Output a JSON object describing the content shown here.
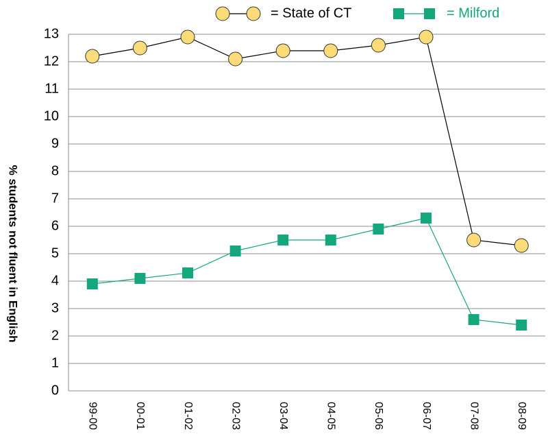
{
  "chart_data": {
    "type": "line",
    "y_label": "% students not fluent in English",
    "categories": [
      "99-00",
      "00-01",
      "01-02",
      "02-03",
      "03-04",
      "04-05",
      "05-06",
      "06-07",
      "07-08",
      "08-09"
    ],
    "series": [
      {
        "name": "= State of CT",
        "color": "#fbdc78",
        "line_color": "#000000",
        "marker": "circle",
        "values": [
          12.2,
          12.5,
          12.9,
          12.1,
          12.4,
          12.4,
          12.6,
          12.9,
          5.5,
          5.3
        ]
      },
      {
        "name": "= Milford",
        "color": "#14a67c",
        "line_color": "#14a67c",
        "marker": "square",
        "values": [
          3.9,
          4.1,
          4.3,
          5.1,
          5.5,
          5.5,
          5.9,
          6.3,
          2.6,
          2.4
        ]
      }
    ],
    "ylim": [
      0,
      13
    ],
    "yticks": [
      0,
      1,
      2,
      3,
      4,
      5,
      6,
      7,
      8,
      9,
      10,
      11,
      12,
      13
    ],
    "grid": true
  }
}
